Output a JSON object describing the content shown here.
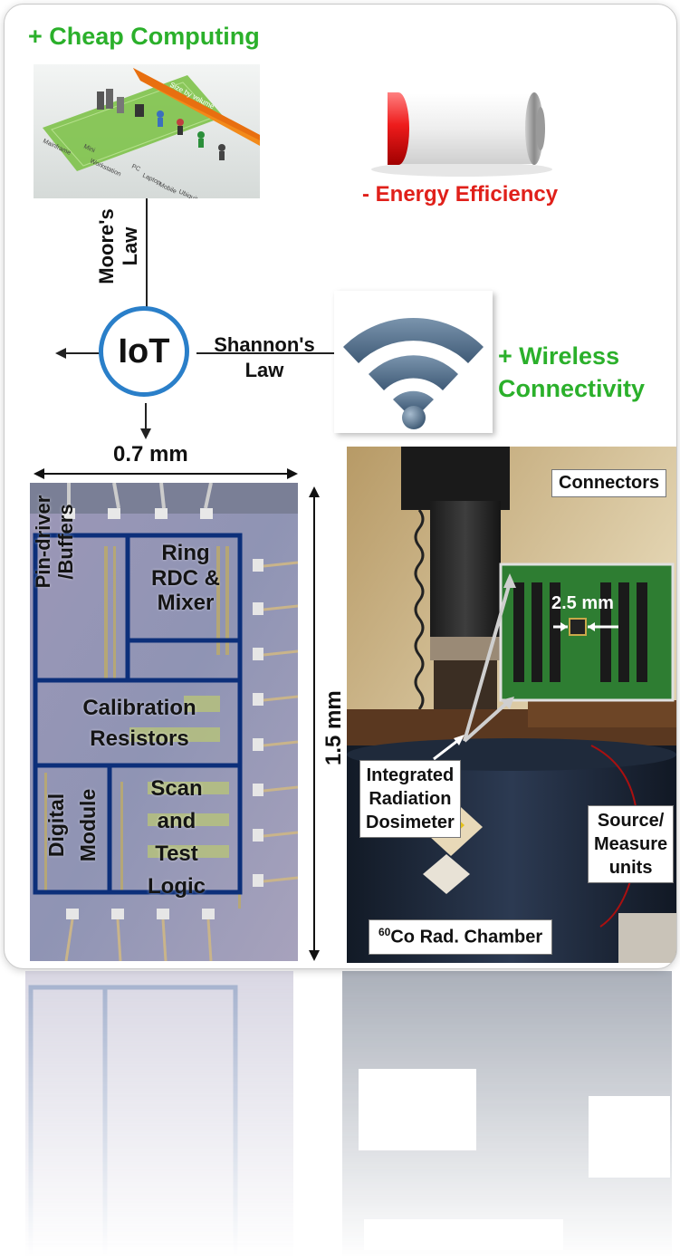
{
  "cheap_computing": "+ Cheap Computing",
  "bell_graphic": {
    "size_by_volume": "Size by volume",
    "classes": [
      "Mainframe",
      "Mini",
      "Workstation",
      "PC",
      "Laptop",
      "Mobile",
      "Ubiquitous"
    ]
  },
  "energy_efficiency": "- Energy Efficiency",
  "moores_law": [
    "Moore's",
    "Law"
  ],
  "iot": "IoT",
  "shannons_law": [
    "Shannon's",
    "Law"
  ],
  "wireless_connectivity": [
    "+ Wireless",
    "Connectivity"
  ],
  "chip": {
    "width_label": "0.7 mm",
    "height_label": "1.5 mm",
    "blocks": {
      "pin_driver": "Pin-driver /Buffers",
      "ring_rdc": [
        "Ring",
        "RDC &",
        "Mixer"
      ],
      "calibration": [
        "Calibration",
        "Resistors"
      ],
      "digital": [
        "Digital",
        "Module"
      ],
      "scan": [
        "Scan",
        "and",
        "Test",
        "Logic"
      ]
    }
  },
  "setup": {
    "connectors": "Connectors",
    "board_dim": "2.5 mm",
    "dosimeter": [
      "Integrated",
      "Radiation",
      "Dosimeter"
    ],
    "source": [
      "Source/",
      "Measure",
      "units"
    ],
    "chamber_sup": "60",
    "chamber": "Co Rad. Chamber"
  },
  "colors": {
    "green": "#2bb02b",
    "red": "#e0201a",
    "navy": "#0c2f7a",
    "iot_ring": "#2a7fc9",
    "wifi": "#5b7a9a"
  }
}
